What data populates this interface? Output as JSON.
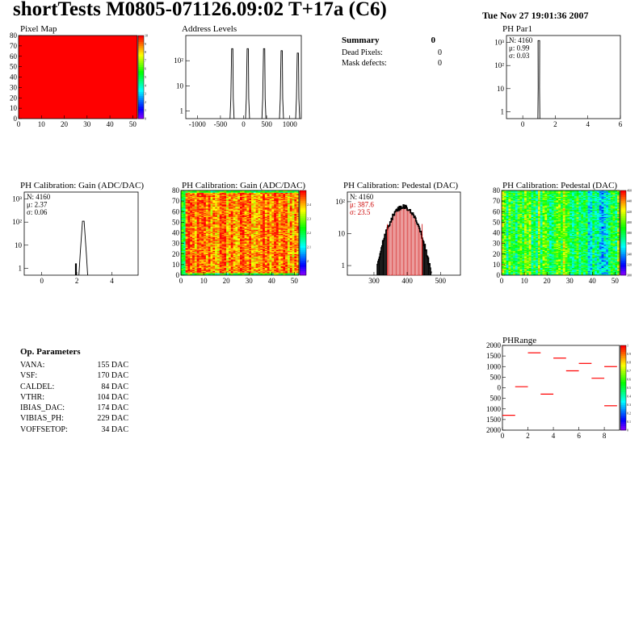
{
  "header": {
    "title": "shortTests M0805-071126.09:02 T+17a (C6)",
    "date": "Tue Nov 27 19:01:36 2007"
  },
  "colors": {
    "red": "#ff0000",
    "line": "#000000",
    "fit": "#cc0000"
  },
  "summary": {
    "title": "Summary",
    "title_value": "0",
    "rows": [
      {
        "label": "Dead Pixels:",
        "value": "0"
      },
      {
        "label": "Mask defects:",
        "value": "0"
      }
    ]
  },
  "op_params": {
    "title": "Op. Parameters",
    "rows": [
      {
        "label": "VANA:",
        "value": "155 DAC"
      },
      {
        "label": "VSF:",
        "value": "170 DAC"
      },
      {
        "label": "CALDEL:",
        "value": "84 DAC"
      },
      {
        "label": "VTHR:",
        "value": "104 DAC"
      },
      {
        "label": "IBIAS_DAC:",
        "value": "174 DAC"
      },
      {
        "label": "VIBIAS_PH:",
        "value": "229 DAC"
      },
      {
        "label": "VOFFSETOP:",
        "value": "34 DAC"
      }
    ]
  },
  "chart_data": [
    {
      "id": "pixel_map",
      "type": "heatmap",
      "title": "Pixel Map",
      "xlim": [
        0,
        52
      ],
      "ylim": [
        0,
        80
      ],
      "x_ticks": [
        "0",
        "10",
        "20",
        "30",
        "40",
        "50"
      ],
      "y_ticks": [
        "0",
        "10",
        "20",
        "30",
        "40",
        "50",
        "60",
        "70",
        "80"
      ],
      "uniform_value": 10,
      "zlim": [
        0,
        10
      ],
      "z_ticks": [
        "0",
        "1",
        "2",
        "3",
        "4",
        "5",
        "6",
        "7",
        "8",
        "9",
        "10"
      ]
    },
    {
      "id": "address_levels",
      "type": "bar",
      "title": "Address Levels",
      "ylog": true,
      "xlim": [
        -1250,
        1250
      ],
      "ylim": [
        0.5,
        1000
      ],
      "x_ticks": [
        "-1000",
        "-500",
        "0",
        "500",
        "1000"
      ],
      "y_ticks": [
        "1",
        "10",
        "10²"
      ],
      "peaks": [
        {
          "x": -240,
          "height": 300
        },
        {
          "x": 95,
          "height": 300
        },
        {
          "x": 450,
          "height": 300
        },
        {
          "x": 830,
          "height": 250
        },
        {
          "x": 1180,
          "height": 200
        }
      ]
    },
    {
      "id": "ph_par1",
      "type": "bar",
      "title": "PH Par1",
      "ylog": true,
      "xlim": [
        -1,
        6
      ],
      "ylim": [
        0.5,
        2000
      ],
      "x_ticks": [
        "0",
        "2",
        "4",
        "6"
      ],
      "y_ticks": [
        "1",
        "10",
        "10²",
        "10³"
      ],
      "stats": [
        "N: 4160",
        "μ: 0.99",
        "σ: 0.03"
      ],
      "peaks": [
        {
          "x": 0.99,
          "height": 1200,
          "width": 0.12
        }
      ]
    },
    {
      "id": "gain_hist",
      "type": "bar",
      "title": "PH Calibration: Gain (ADC/DAC)",
      "ylog": true,
      "xlim": [
        -1,
        5.5
      ],
      "ylim": [
        0.5,
        2000
      ],
      "x_ticks": [
        "0",
        "2",
        "4"
      ],
      "y_ticks": [
        "1",
        "10",
        "10²",
        "10³"
      ],
      "stats": [
        "N: 4160",
        "μ: 2.37",
        "σ: 0.06"
      ],
      "peaks": [
        {
          "x": 2.37,
          "height": 110,
          "width": 0.5
        }
      ],
      "extra_bar": {
        "x": 1.95,
        "width": 0.1,
        "height": 1
      }
    },
    {
      "id": "gain_map",
      "type": "heatmap",
      "title": "PH Calibration: Gain (ADC/DAC)",
      "xlim": [
        0,
        52
      ],
      "ylim": [
        0,
        80
      ],
      "x_ticks": [
        "0",
        "10",
        "20",
        "30",
        "40",
        "50"
      ],
      "y_ticks": [
        "0",
        "10",
        "20",
        "30",
        "40",
        "50",
        "60",
        "70",
        "80"
      ],
      "zlim": [
        1.9,
        2.5
      ],
      "z_ticks": [
        "2",
        "2.1",
        "2.2",
        "2.3",
        "2.4"
      ],
      "mean": 2.37
    },
    {
      "id": "pedestal_hist",
      "type": "bar",
      "title": "PH Calibration: Pedestal (DAC)",
      "ylog": true,
      "xlim": [
        220,
        560
      ],
      "ylim": [
        0.5,
        200
      ],
      "x_ticks": [
        "300",
        "400",
        "500"
      ],
      "y_ticks": [
        "1",
        "10",
        "10²"
      ],
      "stats": [
        "N: 4160",
        "μ: 387.6",
        "σ: 23.5"
      ],
      "mean": 387.6,
      "sigma": 23.5,
      "peak_height": 70,
      "fit_lines": [
        340,
        445
      ]
    },
    {
      "id": "pedestal_map",
      "type": "heatmap",
      "title": "PH Calibration: Pedestal (DAC)",
      "xlim": [
        0,
        52
      ],
      "ylim": [
        0,
        80
      ],
      "x_ticks": [
        "0",
        "10",
        "20",
        "30",
        "40",
        "50"
      ],
      "y_ticks": [
        "0",
        "10",
        "20",
        "30",
        "40",
        "50",
        "60",
        "70",
        "80"
      ],
      "zlim": [
        300,
        460
      ],
      "z_ticks": [
        "300",
        "320",
        "340",
        "360",
        "380",
        "400",
        "420",
        "440",
        "460"
      ],
      "mean": 387.6
    },
    {
      "id": "ph_range",
      "type": "scatter",
      "title": "PHRange",
      "xlim": [
        0,
        9.2
      ],
      "ylim": [
        -2000,
        2000
      ],
      "x_ticks": [
        "0",
        "2",
        "4",
        "6",
        "8"
      ],
      "y_ticks": [
        "2000",
        "1500",
        "1000",
        "500",
        "0",
        "500",
        "1000",
        "1500",
        "2000"
      ],
      "zlim": [
        0,
        1
      ],
      "z_ticks": [
        "0",
        "0.1",
        "0.2",
        "0.3",
        "0.4",
        "0.5",
        "0.6",
        "0.7",
        "0.8",
        "0.9",
        "1"
      ],
      "points": [
        {
          "x": 0.5,
          "y": -1300
        },
        {
          "x": 1.5,
          "y": 50
        },
        {
          "x": 2.5,
          "y": 1650
        },
        {
          "x": 3.5,
          "y": -300
        },
        {
          "x": 4.5,
          "y": 1400
        },
        {
          "x": 5.5,
          "y": 800
        },
        {
          "x": 6.5,
          "y": 1150
        },
        {
          "x": 7.5,
          "y": 450
        },
        {
          "x": 8.5,
          "y": 1000
        },
        {
          "x": 8.5,
          "y": -850
        }
      ]
    }
  ]
}
